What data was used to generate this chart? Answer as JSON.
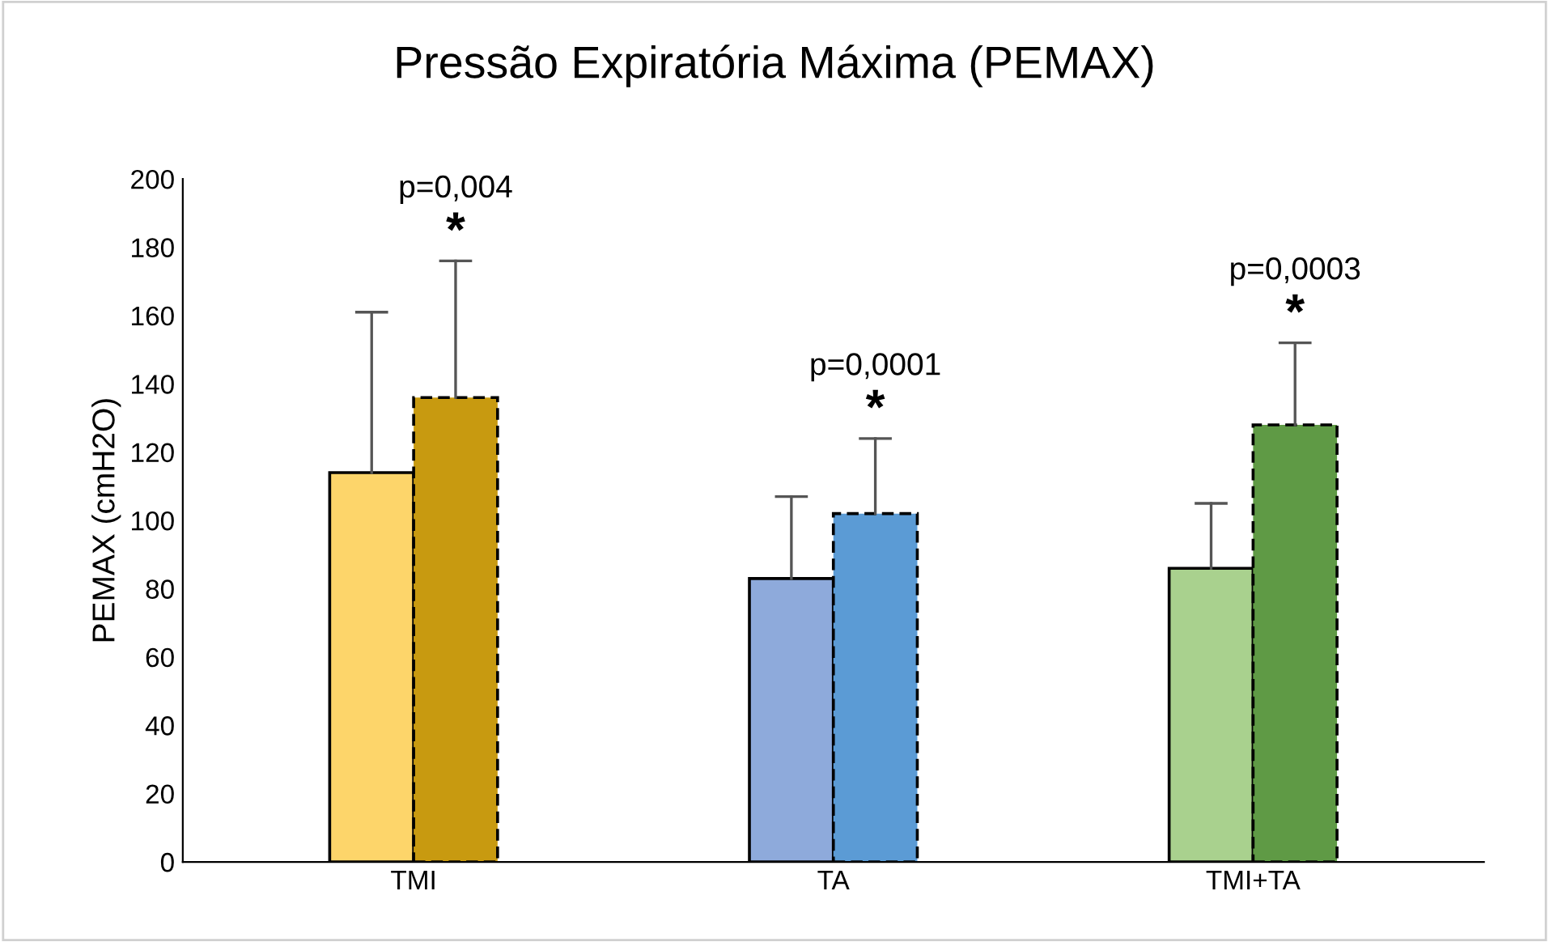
{
  "chart_data": {
    "type": "bar",
    "title": "Pressão Expiratória Máxima (PEMAX)",
    "ylabel": "PEMAX (cmH2O)",
    "categories": [
      "TMI",
      "TA",
      "TMI+TA"
    ],
    "series": [
      {
        "colors": [
          "#fdd56a",
          "#8eaadb",
          "#a9d18e"
        ],
        "line_style": "solid",
        "values": [
          114,
          83,
          86
        ],
        "errors": [
          [
            114,
            161
          ],
          [
            83,
            107
          ],
          [
            86,
            105
          ]
        ]
      },
      {
        "colors": [
          "#c89a10",
          "#5b9bd5",
          "#5f9a45"
        ],
        "line_style": "dashed",
        "values": [
          136,
          102,
          128
        ],
        "errors": [
          [
            136,
            176
          ],
          [
            102,
            124
          ],
          [
            128,
            152
          ]
        ]
      }
    ],
    "ylim": [
      0,
      200
    ],
    "yticks": [
      0,
      20,
      40,
      60,
      80,
      100,
      120,
      140,
      160,
      180,
      200
    ],
    "grid": false,
    "legend": false,
    "annotations": [
      "p=0,004",
      "*",
      "p=0,0001",
      "*",
      "p=0,0003",
      "*"
    ]
  }
}
